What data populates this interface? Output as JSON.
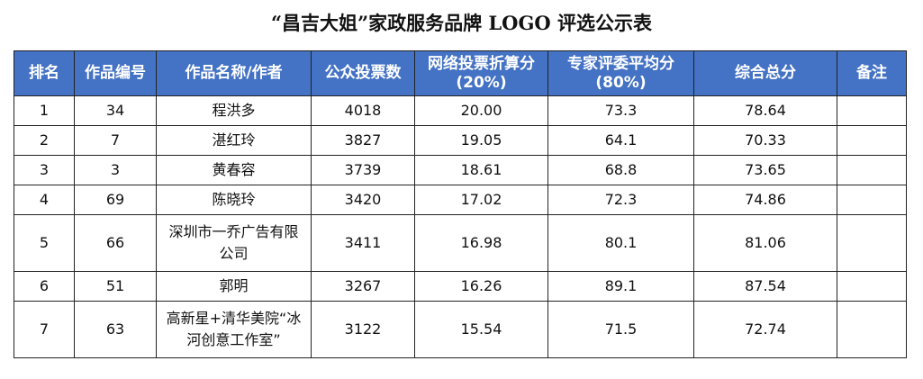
{
  "header": {
    "title": "“昌吉大姐”家政服务品牌 LOGO 评选公示表"
  },
  "table": {
    "columns": [
      "排名",
      "作品编号",
      "作品名称/作者",
      "公众投票数",
      "网络投票折算分(20%)",
      "专家评委平均分(80%)",
      "综合总分",
      "备注"
    ],
    "rows": [
      [
        "1",
        "34",
        "程洪多",
        "4018",
        "20.00",
        "73.3",
        "78.64",
        null
      ],
      [
        "2",
        "7",
        "湛红玲",
        "3827",
        "19.05",
        "64.1",
        "70.33",
        null
      ],
      [
        "3",
        "3",
        "黄春容",
        "3739",
        "18.61",
        "68.8",
        "73.65",
        null
      ],
      [
        "4",
        "69",
        "陈晓玲",
        "3420",
        "17.02",
        "72.3",
        "74.86",
        null
      ],
      [
        "5",
        "66",
        "深圳市一乔广告有限公司",
        "3411",
        "16.98",
        "80.1",
        "81.06",
        null
      ],
      [
        "6",
        "51",
        "郭明",
        "3267",
        "16.26",
        "89.1",
        "87.54",
        null
      ],
      [
        "7",
        "63",
        "高新星+清华美院“冰河创意工作室”",
        "3122",
        "15.54",
        "71.5",
        "72.74",
        null
      ]
    ]
  }
}
